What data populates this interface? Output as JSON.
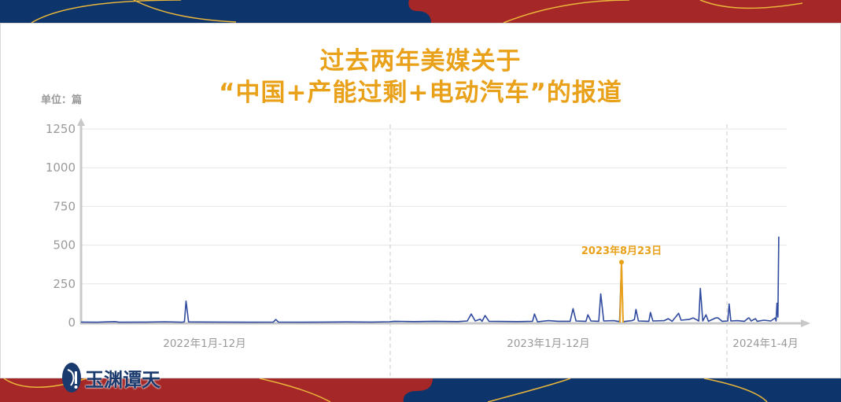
{
  "header": {
    "title_line1": "过去两年美媒关于",
    "title_line2": "“中国+产能过剩+电动汽车”的报道",
    "unit_label": "单位：篇"
  },
  "logo": {
    "text": "玉渊谭天"
  },
  "colors": {
    "navy": "#0E356B",
    "red": "#A52727",
    "gold": "#E9B53A",
    "line": "#2F4A9E",
    "highlight": "#E9A11A",
    "axis": "#c8c8c8"
  },
  "chart_data": {
    "type": "line",
    "title": "过去两年美媒关于“中国+产能过剩+电动汽车”的报道",
    "ylabel": "单位：篇",
    "ylim": [
      0,
      1250
    ],
    "yticks": [
      0,
      250,
      500,
      750,
      1000,
      1250
    ],
    "grid": true,
    "x_period_labels": [
      "2022年1月-12月",
      "2023年1月-12月",
      "2024年1-4月"
    ],
    "annotation": {
      "label": "2023年8月23日",
      "date": "2023-08-23",
      "value": 390
    },
    "series": [
      {
        "points": [
          [
            "2022-01-01",
            3
          ],
          [
            "2022-01-20",
            2
          ],
          [
            "2022-02-10",
            6
          ],
          [
            "2022-02-15",
            2
          ],
          [
            "2022-03-20",
            3
          ],
          [
            "2022-04-10",
            5
          ],
          [
            "2022-04-30",
            2
          ],
          [
            "2022-05-03",
            5
          ],
          [
            "2022-05-05",
            138
          ],
          [
            "2022-05-08",
            4
          ],
          [
            "2022-06-15",
            3
          ],
          [
            "2022-07-20",
            2
          ],
          [
            "2022-08-16",
            3
          ],
          [
            "2022-08-19",
            20
          ],
          [
            "2022-08-22",
            3
          ],
          [
            "2022-09-20",
            2
          ],
          [
            "2022-10-15",
            3
          ],
          [
            "2022-11-10",
            4
          ],
          [
            "2022-12-10",
            3
          ],
          [
            "2022-12-31",
            5
          ],
          [
            "2023-01-05",
            8
          ],
          [
            "2023-01-25",
            6
          ],
          [
            "2023-02-15",
            8
          ],
          [
            "2023-03-10",
            6
          ],
          [
            "2023-03-20",
            10
          ],
          [
            "2023-03-24",
            55
          ],
          [
            "2023-03-28",
            10
          ],
          [
            "2023-04-02",
            22
          ],
          [
            "2023-04-04",
            8
          ],
          [
            "2023-04-07",
            45
          ],
          [
            "2023-04-11",
            8
          ],
          [
            "2023-05-10",
            6
          ],
          [
            "2023-05-25",
            8
          ],
          [
            "2023-05-27",
            55
          ],
          [
            "2023-05-30",
            5
          ],
          [
            "2023-06-10",
            12
          ],
          [
            "2023-06-20",
            8
          ],
          [
            "2023-07-02",
            8
          ],
          [
            "2023-07-05",
            90
          ],
          [
            "2023-07-08",
            10
          ],
          [
            "2023-07-18",
            8
          ],
          [
            "2023-07-20",
            50
          ],
          [
            "2023-07-23",
            10
          ],
          [
            "2023-07-31",
            8
          ],
          [
            "2023-08-02",
            185
          ],
          [
            "2023-08-05",
            10
          ],
          [
            "2023-08-15",
            12
          ],
          [
            "2023-08-21",
            6
          ],
          [
            "2023-08-23",
            390
          ],
          [
            "2023-08-25",
            6
          ],
          [
            "2023-09-05",
            12
          ],
          [
            "2023-09-08",
            20
          ],
          [
            "2023-09-10",
            85
          ],
          [
            "2023-09-13",
            10
          ],
          [
            "2023-09-26",
            8
          ],
          [
            "2023-09-28",
            65
          ],
          [
            "2023-10-01",
            10
          ],
          [
            "2023-10-15",
            12
          ],
          [
            "2023-10-20",
            25
          ],
          [
            "2023-10-25",
            8
          ],
          [
            "2023-11-02",
            60
          ],
          [
            "2023-11-05",
            15
          ],
          [
            "2023-11-15",
            20
          ],
          [
            "2023-11-20",
            30
          ],
          [
            "2023-11-27",
            10
          ],
          [
            "2023-11-29",
            220
          ],
          [
            "2023-12-02",
            10
          ],
          [
            "2023-12-06",
            50
          ],
          [
            "2023-12-09",
            8
          ],
          [
            "2023-12-18",
            30
          ],
          [
            "2023-12-21",
            30
          ],
          [
            "2023-12-26",
            8
          ],
          [
            "2024-01-03",
            10
          ],
          [
            "2024-01-06",
            120
          ],
          [
            "2024-01-10",
            10
          ],
          [
            "2024-01-25",
            12
          ],
          [
            "2024-02-10",
            8
          ],
          [
            "2024-02-19",
            30
          ],
          [
            "2024-02-21",
            28
          ],
          [
            "2024-02-25",
            10
          ],
          [
            "2024-03-06",
            25
          ],
          [
            "2024-03-10",
            8
          ],
          [
            "2024-03-25",
            15
          ],
          [
            "2024-04-10",
            10
          ],
          [
            "2024-04-20",
            30
          ],
          [
            "2024-04-22",
            10
          ],
          [
            "2024-04-24",
            125
          ],
          [
            "2024-04-26",
            35
          ],
          [
            "2024-04-28",
            555
          ]
        ]
      }
    ]
  }
}
